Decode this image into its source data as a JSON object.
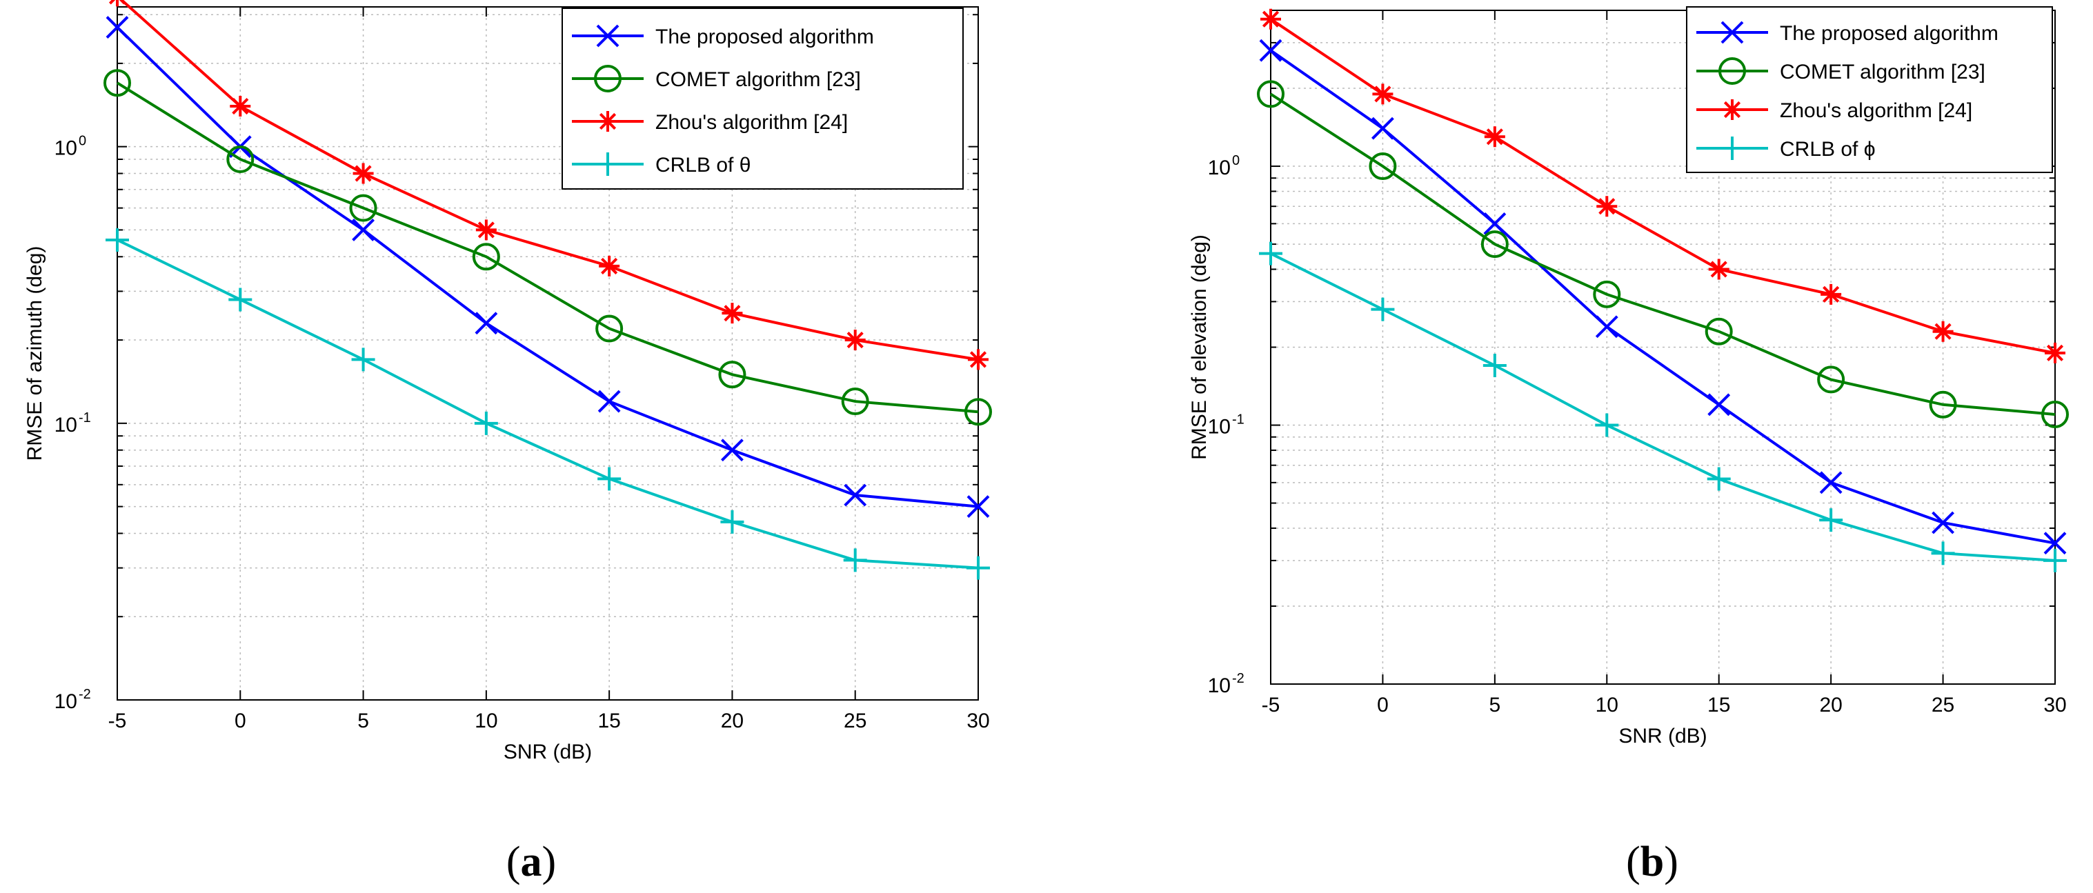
{
  "chart_data": [
    {
      "panel": "a",
      "type": "line",
      "yscale": "log",
      "x": [
        -5,
        0,
        5,
        10,
        15,
        20,
        25,
        30
      ],
      "xticks": [
        "-5",
        "0",
        "5",
        "10",
        "15",
        "20",
        "25",
        "30"
      ],
      "xlim": [
        -5,
        30
      ],
      "ylim": [
        0.01,
        3.2
      ],
      "yticks": [
        {
          "base": "10",
          "exp": "-2"
        },
        {
          "base": "10",
          "exp": "-1"
        },
        {
          "base": "10",
          "exp": "0"
        }
      ],
      "xlabel": "SNR (dB)",
      "ylabel": "RMSE of azimuth (deg)",
      "legend_position": "top-right",
      "grid": true,
      "series": [
        {
          "name": "The proposed algorithm",
          "color": "#0000ff",
          "marker": "x",
          "values": [
            2.7,
            1.0,
            0.5,
            0.23,
            0.12,
            0.08,
            0.055,
            0.05
          ]
        },
        {
          "name": "COMET algorithm [23]",
          "color": "#008000",
          "marker": "o",
          "values": [
            1.7,
            0.9,
            0.6,
            0.4,
            0.22,
            0.15,
            0.12,
            0.11
          ]
        },
        {
          "name": "Zhou's algorithm [24]",
          "color": "#ff0000",
          "marker": "*",
          "values": [
            3.5,
            1.4,
            0.8,
            0.5,
            0.37,
            0.25,
            0.2,
            0.17
          ]
        },
        {
          "name": "CRLB of θ",
          "color": "#00c0c0",
          "marker": "+",
          "values": [
            0.46,
            0.28,
            0.17,
            0.1,
            0.063,
            0.044,
            0.032,
            0.03
          ]
        }
      ]
    },
    {
      "panel": "b",
      "type": "line",
      "yscale": "log",
      "x": [
        -5,
        0,
        5,
        10,
        15,
        20,
        25,
        30
      ],
      "xticks": [
        "-5",
        "0",
        "5",
        "10",
        "15",
        "20",
        "25",
        "30"
      ],
      "xlim": [
        -5,
        30
      ],
      "ylim": [
        0.01,
        4
      ],
      "yticks": [
        {
          "base": "10",
          "exp": "-2"
        },
        {
          "base": "10",
          "exp": "-1"
        },
        {
          "base": "10",
          "exp": "0"
        }
      ],
      "xlabel": "SNR (dB)",
      "ylabel": "RMSE of elevation (deg)",
      "legend_position": "top-right",
      "grid": true,
      "series": [
        {
          "name": "The proposed algorithm",
          "color": "#0000ff",
          "marker": "x",
          "values": [
            2.8,
            1.4,
            0.6,
            0.24,
            0.12,
            0.06,
            0.042,
            0.035
          ]
        },
        {
          "name": "COMET algorithm [23]",
          "color": "#008000",
          "marker": "o",
          "values": [
            1.9,
            1.0,
            0.5,
            0.32,
            0.23,
            0.15,
            0.12,
            0.11
          ]
        },
        {
          "name": "Zhou's algorithm [24]",
          "color": "#ff0000",
          "marker": "*",
          "values": [
            3.7,
            1.9,
            1.3,
            0.7,
            0.4,
            0.32,
            0.23,
            0.19
          ]
        },
        {
          "name": "CRLB of ϕ",
          "color": "#00c0c0",
          "marker": "+",
          "values": [
            0.46,
            0.28,
            0.17,
            0.1,
            0.062,
            0.043,
            0.032,
            0.03
          ]
        }
      ]
    }
  ],
  "captions": {
    "a": "a",
    "b": "b"
  }
}
